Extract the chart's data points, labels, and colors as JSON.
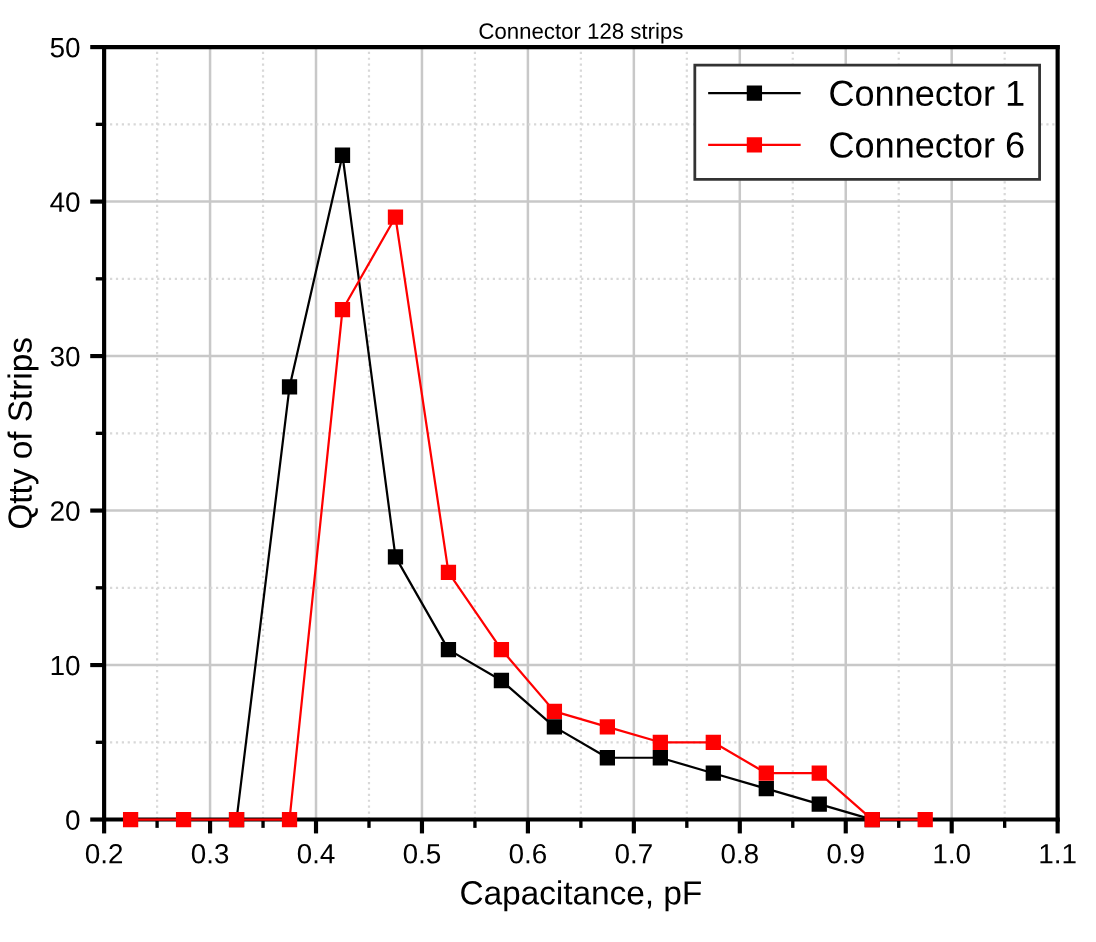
{
  "chart_data": {
    "type": "line",
    "title": "Connector 128 strips",
    "xlabel": "Capacitance, pF",
    "ylabel": "Qtty of Strips",
    "series": [
      {
        "name": "Connector 1",
        "color": "#000000",
        "x": [
          0.325,
          0.375,
          0.425,
          0.475,
          0.525,
          0.575,
          0.625,
          0.675,
          0.725,
          0.775,
          0.825,
          0.875,
          0.925
        ],
        "values": [
          0,
          28,
          43,
          17,
          11,
          9,
          6,
          4,
          4,
          3,
          2,
          1,
          0
        ]
      },
      {
        "name": "Connector 6",
        "color": "#ff0000",
        "x": [
          0.225,
          0.275,
          0.325,
          0.375,
          0.425,
          0.475,
          0.525,
          0.575,
          0.625,
          0.675,
          0.725,
          0.775,
          0.825,
          0.875,
          0.925,
          0.975
        ],
        "values": [
          0,
          0,
          0,
          0,
          33,
          39,
          16,
          11,
          7,
          6,
          5,
          5,
          3,
          3,
          0,
          0
        ]
      }
    ],
    "xlim": [
      0.2,
      1.1
    ],
    "xticks": [
      {
        "value": 0.2,
        "label": "0.2"
      },
      {
        "value": 0.3,
        "label": "0.3"
      },
      {
        "value": 0.4,
        "label": "0.4"
      },
      {
        "value": 0.5,
        "label": "0.5"
      },
      {
        "value": 0.6,
        "label": "0.6"
      },
      {
        "value": 0.7,
        "label": "0.7"
      },
      {
        "value": 0.8,
        "label": "0.8"
      },
      {
        "value": 0.9,
        "label": "0.9"
      },
      {
        "value": 1.0,
        "label": "1.0"
      },
      {
        "value": 1.1,
        "label": "1.1"
      }
    ],
    "ylim": [
      0,
      50
    ],
    "yticks": [
      0,
      10,
      20,
      30,
      40,
      50
    ],
    "grid": true,
    "legend": "top right",
    "marker": "square",
    "line_style": "solid"
  }
}
